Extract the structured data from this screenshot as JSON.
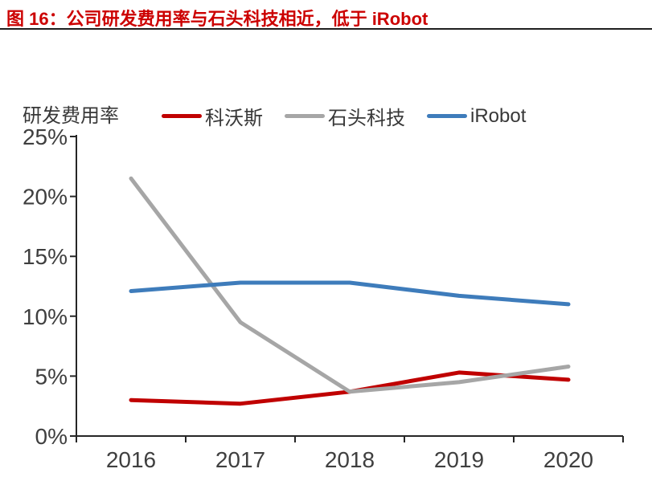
{
  "header": {
    "title": "图 16：公司研发费用率与石头科技相近，低于 iRobot"
  },
  "chart_data": {
    "type": "line",
    "title": "公司研发费用率与石头科技相近，低于 iRobot",
    "figure_label": "图 16",
    "y_axis_title": "研发费用率",
    "categories": [
      "2016",
      "2017",
      "2018",
      "2019",
      "2020"
    ],
    "series": [
      {
        "key": "ecovacs",
        "name": "科沃斯",
        "color": "#c00000",
        "values": [
          3.0,
          2.7,
          3.7,
          5.3,
          4.7
        ]
      },
      {
        "key": "roborock",
        "name": "石头科技",
        "color": "#a6a6a6",
        "values": [
          21.5,
          9.5,
          3.7,
          4.5,
          5.8
        ]
      },
      {
        "key": "irobot",
        "name": "iRobot",
        "color": "#3e7cbb",
        "values": [
          12.1,
          12.8,
          12.8,
          11.7,
          11.0
        ]
      }
    ],
    "ylim": [
      0,
      25
    ],
    "y_tick_step": 5,
    "y_tick_labels": [
      "0%",
      "5%",
      "10%",
      "15%",
      "20%",
      "25%"
    ],
    "legend_position": "top",
    "grid": false,
    "colors": {
      "title_red": "#cc0000",
      "axis": "#262626",
      "tick_label": "#3f3f3f"
    }
  }
}
